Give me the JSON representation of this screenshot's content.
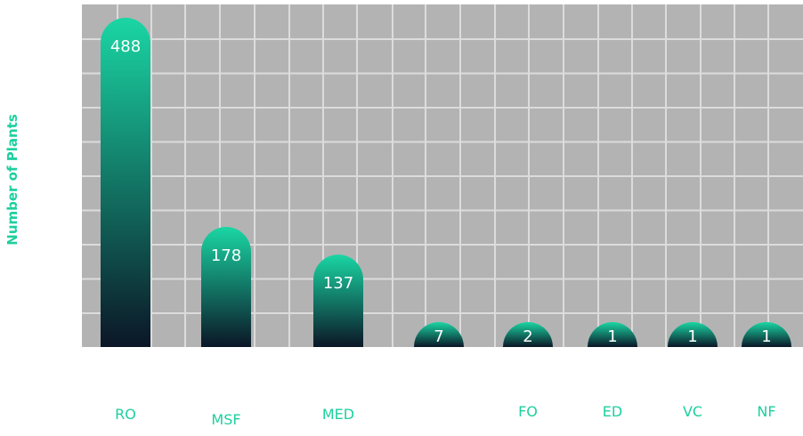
{
  "chart_data": {
    "type": "bar",
    "ylabel": "Number of Plants",
    "xlabel": "",
    "categories": [
      "RO",
      "MSF",
      "MED",
      "",
      "FO",
      "ED",
      "VC",
      "NF"
    ],
    "values": [
      488,
      178,
      137,
      7,
      2,
      1,
      1,
      1
    ],
    "data_labels": [
      "488",
      "178",
      "137",
      "7",
      "2",
      "1",
      "1",
      "1"
    ],
    "grid": true,
    "legend": "none",
    "colors": {
      "plot_background": "#b3b3b3",
      "grid": "#dcdcdc",
      "bar_top": "#1ad6a4",
      "bar_bottom": "#0b1626",
      "label": "#1ecf9f"
    }
  }
}
